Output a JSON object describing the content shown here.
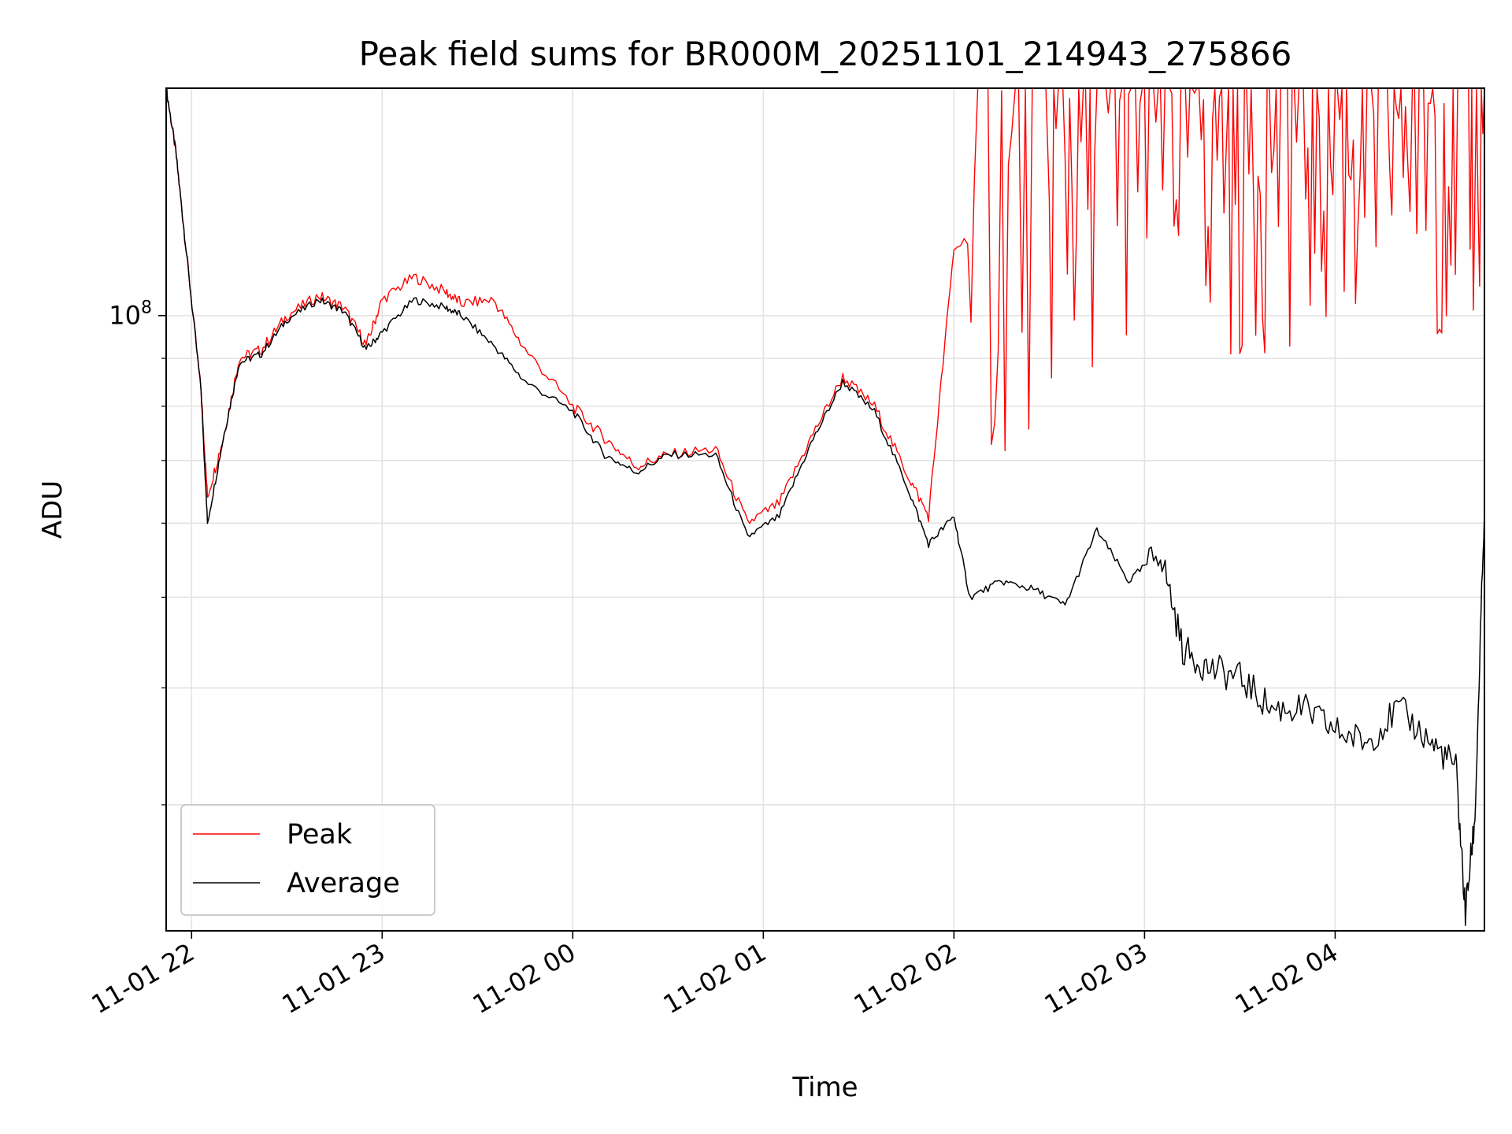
{
  "chart_data": {
    "type": "line",
    "title": "Peak field sums for BR000M_20251101_214943_275866",
    "xlabel": "Time",
    "ylabel": "ADU",
    "y_scale": "log",
    "ylim": [
      22000000,
      175000000
    ],
    "xlim": [
      "11-01 21:52",
      "11-02 04:47"
    ],
    "x_tick_labels": [
      "11-01 22",
      "11-01 23",
      "11-02 00",
      "11-02 01",
      "11-02 02",
      "11-02 03",
      "11-02 04"
    ],
    "y_tick_labels": [
      "10^8"
    ],
    "grid": true,
    "legend_position": "lower-left",
    "colors": {
      "peak": "#ff0000",
      "average": "#000000"
    },
    "series": [
      {
        "name": "Peak",
        "x": [
          "11-01 21:52",
          "11-01 21:55",
          "11-01 21:58",
          "11-01 22:03",
          "11-01 22:05",
          "11-01 22:10",
          "11-01 22:15",
          "11-01 22:22",
          "11-01 22:30",
          "11-01 22:40",
          "11-01 22:48",
          "11-01 22:55",
          "11-01 23:00",
          "11-01 23:10",
          "11-01 23:20",
          "11-01 23:25",
          "11-01 23:35",
          "11-01 23:45",
          "11-02 00:00",
          "11-02 00:10",
          "11-02 00:20",
          "11-02 00:30",
          "11-02 00:45",
          "11-02 00:55",
          "11-02 01:05",
          "11-02 01:15",
          "11-02 01:25",
          "11-02 01:35",
          "11-02 01:45",
          "11-02 01:52",
          "11-02 02:00",
          "11-02 02:15",
          "11-02 02:30",
          "11-02 02:40",
          "11-02 02:50",
          "11-02 03:00",
          "11-02 03:10",
          "11-02 03:20",
          "11-02 03:30",
          "11-02 03:40",
          "11-02 03:50",
          "11-02 04:00",
          "11-02 04:10",
          "11-02 04:20",
          "11-02 04:30",
          "11-02 04:40",
          "11-02 04:47"
        ],
        "y": [
          175000000,
          150000000,
          120000000,
          83000000,
          64000000,
          74000000,
          90000000,
          92000000,
          100000000,
          105000000,
          102000000,
          93000000,
          104000000,
          110000000,
          106000000,
          103000000,
          104000000,
          92000000,
          80000000,
          74000000,
          69000000,
          71000000,
          72000000,
          60000000,
          63000000,
          74000000,
          86000000,
          80000000,
          68000000,
          61000000,
          118000000,
          128000000,
          145000000,
          160000000,
          170000000,
          175000000,
          175000000,
          175000000,
          160000000,
          175000000,
          170000000,
          175000000,
          160000000,
          175000000,
          175000000,
          170000000,
          175000000
        ]
      },
      {
        "name": "Average",
        "x": [
          "11-01 21:52",
          "11-01 21:55",
          "11-01 21:58",
          "11-01 22:03",
          "11-01 22:05",
          "11-01 22:10",
          "11-01 22:15",
          "11-01 22:22",
          "11-01 22:30",
          "11-01 22:40",
          "11-01 22:48",
          "11-01 22:55",
          "11-01 23:00",
          "11-01 23:10",
          "11-01 23:20",
          "11-01 23:25",
          "11-01 23:35",
          "11-01 23:45",
          "11-02 00:00",
          "11-02 00:10",
          "11-02 00:20",
          "11-02 00:30",
          "11-02 00:45",
          "11-02 00:55",
          "11-02 01:05",
          "11-02 01:15",
          "11-02 01:25",
          "11-02 01:35",
          "11-02 01:45",
          "11-02 01:52",
          "11-02 02:00",
          "11-02 02:05",
          "11-02 02:15",
          "11-02 02:25",
          "11-02 02:35",
          "11-02 02:45",
          "11-02 02:55",
          "11-02 03:05",
          "11-02 03:12",
          "11-02 03:20",
          "11-02 03:30",
          "11-02 03:40",
          "11-02 03:50",
          "11-02 04:00",
          "11-02 04:10",
          "11-02 04:20",
          "11-02 04:30",
          "11-02 04:38",
          "11-02 04:41",
          "11-02 04:44",
          "11-02 04:47"
        ],
        "y": [
          175000000,
          150000000,
          120000000,
          83000000,
          60000000,
          74000000,
          89000000,
          91000000,
          99000000,
          104000000,
          101000000,
          92000000,
          96000000,
          104000000,
          102000000,
          100000000,
          93000000,
          85000000,
          79000000,
          71000000,
          68000000,
          71000000,
          71000000,
          58000000,
          61000000,
          73000000,
          85000000,
          79000000,
          66000000,
          57000000,
          61000000,
          50000000,
          52000000,
          51000000,
          49000000,
          59000000,
          52000000,
          56000000,
          44000000,
          42000000,
          41000000,
          38000000,
          38000000,
          36000000,
          35000000,
          38000000,
          35000000,
          33000000,
          23000000,
          29000000,
          62000000
        ]
      }
    ]
  }
}
